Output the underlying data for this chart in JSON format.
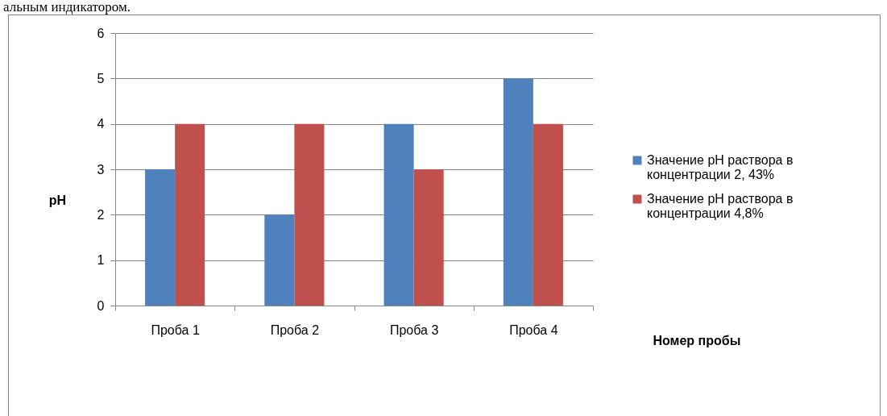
{
  "chart_data": {
    "type": "bar",
    "xlabel": "Номер пробы",
    "ylabel": "pH",
    "annotations": [
      "альным индикатором."
    ],
    "categories": [
      "Проба 1",
      "Проба 2",
      "Проба 3",
      "Проба 4"
    ],
    "series": [
      {
        "name": "Значение pH раствора в концентрации 2, 43%",
        "color": "#4f81bd",
        "values": [
          3,
          2,
          4,
          5
        ]
      },
      {
        "name": "Значение pH раствора в концентрации 4,8%",
        "color": "#c0504d",
        "values": [
          4,
          4,
          3,
          4
        ]
      }
    ],
    "ylim": [
      0,
      6
    ],
    "yticks": [
      0,
      1,
      2,
      3,
      4,
      5,
      6
    ],
    "grid": "y",
    "legend": "right"
  }
}
